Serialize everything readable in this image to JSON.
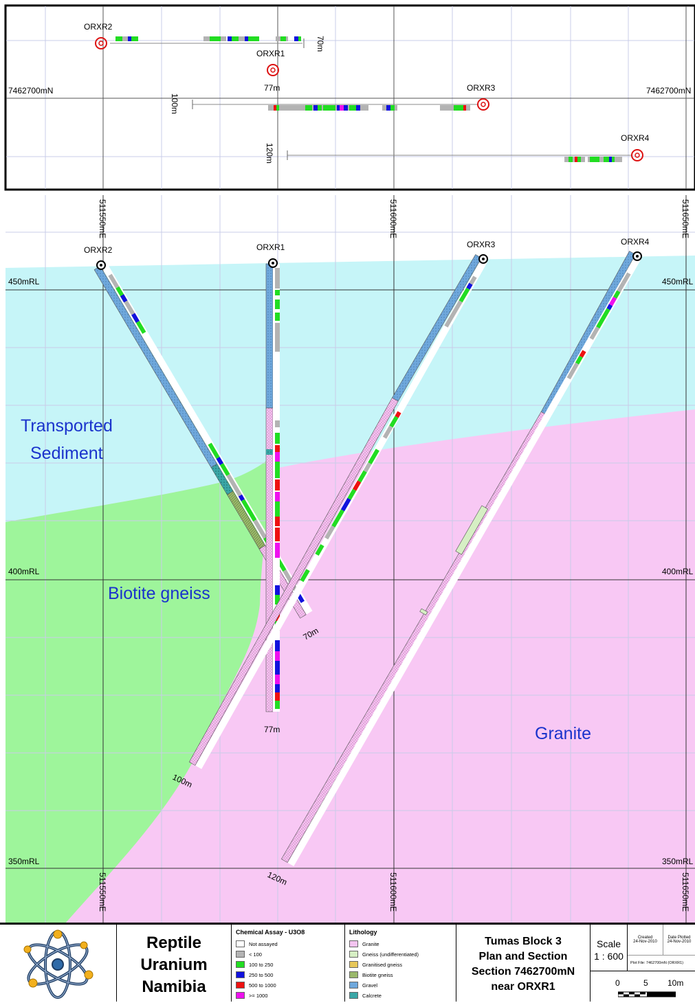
{
  "plan": {
    "northing_label": "7462700mN",
    "holes": [
      {
        "name": "ORXR2",
        "depth": "70m"
      },
      {
        "name": "ORXR1",
        "depth": "77m"
      },
      {
        "name": "ORXR3",
        "depth": "100m"
      },
      {
        "name": "ORXR4",
        "depth": "120m"
      }
    ]
  },
  "section": {
    "eastings": [
      "511550mE",
      "511600mE",
      "511650mE"
    ],
    "rls": [
      "450mRL",
      "400mRL",
      "350mRL"
    ],
    "units": {
      "transported_line1": "Transported",
      "transported_line2": "Sediment",
      "biotite": "Biotite gneiss",
      "granite": "Granite"
    },
    "holes": [
      {
        "name": "ORXR2",
        "depth": "70m"
      },
      {
        "name": "ORXR1",
        "depth": "77m"
      },
      {
        "name": "ORXR3",
        "depth": "100m"
      },
      {
        "name": "ORXR4",
        "depth": "120m"
      }
    ]
  },
  "colors": {
    "transported": "#c6f5f8",
    "biotite": "#9ef59b",
    "granite": "#f8c8f4",
    "gravel": "#6fa8dc",
    "assay_low": "#b3b3b3",
    "assay_100": "#22dd22",
    "assay_250": "#1111dd",
    "assay_500": "#ee1111",
    "assay_1000": "#ee11ee"
  },
  "footer": {
    "company": [
      "Reptile",
      "Uranium",
      "Namibia"
    ],
    "assay_title": "Chemical Assay - U3O8",
    "assay_items": [
      {
        "label": "Not assayed",
        "color": "#ffffff"
      },
      {
        "label": "< 100",
        "color": "#b3b3b3"
      },
      {
        "label": "100 to 250",
        "color": "#22dd22"
      },
      {
        "label": "250 to 500",
        "color": "#1111dd"
      },
      {
        "label": "500 to 1000",
        "color": "#ee1111"
      },
      {
        "label": ">= 1000",
        "color": "#ee11ee"
      }
    ],
    "lith_title": "Lithology",
    "lith_items": [
      {
        "label": "Granite",
        "color": "#f4c4f0"
      },
      {
        "label": "Gneiss (undifferentiated)",
        "color": "#d6efc4"
      },
      {
        "label": "Granitised gneiss",
        "color": "#e7c75a"
      },
      {
        "label": "Biotite gneiss",
        "color": "#9ab86b"
      },
      {
        "label": "Gravel",
        "color": "#6fa8dc"
      },
      {
        "label": "Calcrete",
        "color": "#3aa6a6"
      }
    ],
    "title_lines": [
      "Tumas Block 3",
      "Plan and Section",
      "Section 7462700mN",
      "near ORXR1"
    ],
    "scale_label": "Scale",
    "scale_value": "1 : 600",
    "created_label": "Created",
    "created_date": "24-Nov-2010",
    "plotted_label": "Date Plotted",
    "plotted_date": "24-Nov-2010",
    "plot_file": "Plot File: 7462700mN (ORXR1)",
    "bar_labels": [
      "0",
      "5",
      "10m"
    ]
  }
}
